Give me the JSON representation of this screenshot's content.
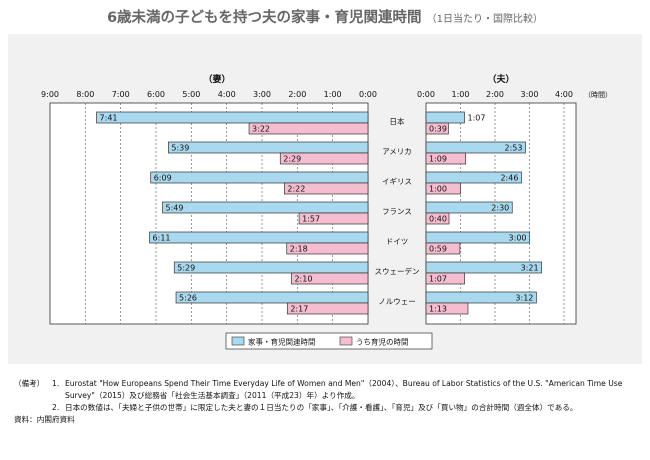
{
  "title": "6歳未満の子どもを持つ夫の家事・育児関連時間",
  "subtitle": "（1日当たり・国際比較）",
  "chart_data": {
    "type": "bar",
    "categories": [
      "日本",
      "アメリカ",
      "イギリス",
      "フランス",
      "ドイツ",
      "スウェーデン",
      "ノルウェー"
    ],
    "panels": [
      {
        "label": "（妻）",
        "direction": "leftward",
        "xlim": [
          "0:00",
          "9:00"
        ],
        "ticks": [
          "9:00",
          "8:00",
          "7:00",
          "6:00",
          "5:00",
          "4:00",
          "3:00",
          "2:00",
          "1:00",
          "0:00"
        ],
        "series": [
          {
            "name": "家事・育児関連時間",
            "values": [
              "7:41",
              "5:39",
              "6:09",
              "5:49",
              "6:11",
              "5:29",
              "5:26"
            ]
          },
          {
            "name": "うち育児の時間",
            "values": [
              "3:22",
              "2:29",
              "2:22",
              "1:57",
              "2:18",
              "2:10",
              "2:17"
            ]
          }
        ]
      },
      {
        "label": "（夫）",
        "direction": "rightward",
        "xlim": [
          "0:00",
          "4:00"
        ],
        "ticks": [
          "0:00",
          "1:00",
          "2:00",
          "3:00",
          "4:00"
        ],
        "tick_suffix": "（時間）",
        "series": [
          {
            "name": "家事・育児関連時間",
            "values": [
              "1:07",
              "2:53",
              "2:46",
              "2:30",
              "3:00",
              "3:21",
              "3:12"
            ]
          },
          {
            "name": "うち育児の時間",
            "values": [
              "0:39",
              "1:09",
              "1:00",
              "0:40",
              "0:59",
              "1:07",
              "1:13"
            ]
          }
        ]
      }
    ],
    "legend": [
      "家事・育児関連時間",
      "うち育児の時間"
    ],
    "legend_position": "bottom-center"
  },
  "colors": {
    "total": "#a8d9ee",
    "childcare": "#f4bdd0",
    "border": "#333333",
    "bg": "#f1f1f1"
  },
  "notes": {
    "tag": "（備考）",
    "items": [
      {
        "num": "1.",
        "text": "Eurostat \"How Europeans Spend Their Time Everyday Life of Women and Men\"（2004）、Bureau of Labor Statistics of the U.S. \"American Time Use Survey\"（2015）及び総務省「社会生活基本調査」（2011（平成23）年）より作成。"
      },
      {
        "num": "2.",
        "text": "日本の数値は、「夫婦と子供の世帯」に限定した夫と妻の１日当たりの「家事」、「介護・看護」、「育児」及び「買い物」の合計時間（週全体）である。"
      }
    ],
    "source": "資料：内閣府資料"
  }
}
